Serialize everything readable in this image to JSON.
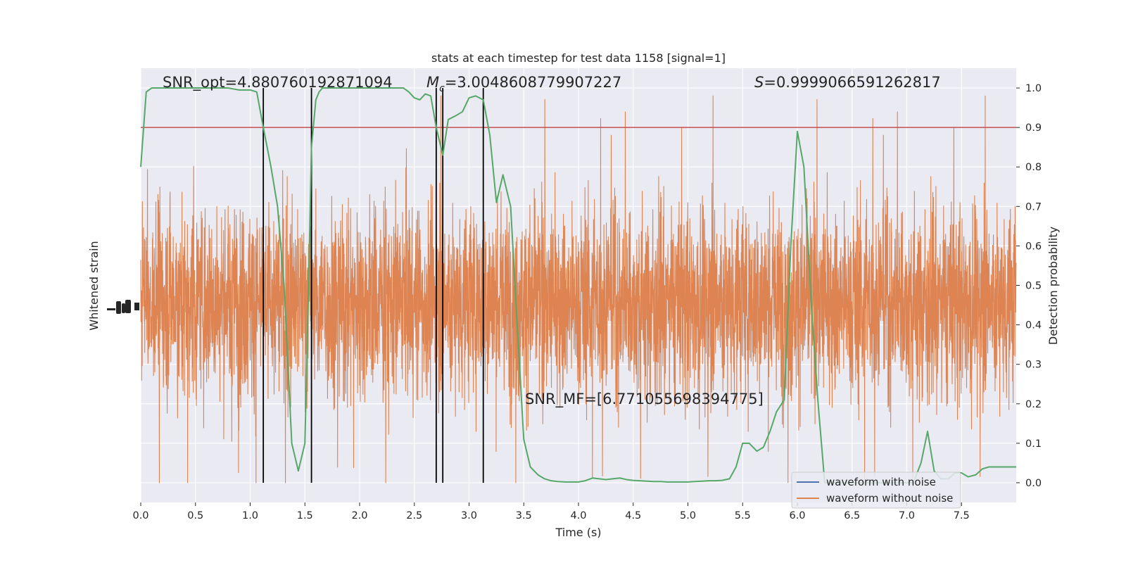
{
  "chart_data": {
    "type": "line",
    "title": "stats at each timestep for test data 1158 [signal=1]",
    "xlabel": "Time (s)",
    "ylabel_left": "Whitened strain",
    "ylabel_right": "Detection probability",
    "xlim": [
      0.0,
      8.0
    ],
    "ylim_right": [
      -0.05,
      1.05
    ],
    "x_ticks": [
      "0.0",
      "0.5",
      "1.0",
      "1.5",
      "2.0",
      "2.5",
      "3.0",
      "3.5",
      "4.0",
      "4.5",
      "5.0",
      "5.5",
      "6.0",
      "6.5",
      "7.0",
      "7.5"
    ],
    "y_ticks_right": [
      "0.0",
      "0.1",
      "0.2",
      "0.3",
      "0.4",
      "0.5",
      "0.6",
      "0.7",
      "0.8",
      "0.9",
      "1.0"
    ],
    "grid": true,
    "annotations": {
      "snr_opt": "SNR_opt=4.880760192871094",
      "mc_symbol": "M",
      "mc_subscript": "c",
      "mc_value": "=3.0048608779907227",
      "s_symbol": "S",
      "s_value": "=0.9999066591262817",
      "snr_mf": "SNR_MF=[6.771055698394775]"
    },
    "threshold": 0.9,
    "event_lines_x": [
      1.12,
      1.56,
      2.7,
      2.76,
      3.13
    ],
    "detection_probability": {
      "x": [
        0.0,
        0.05,
        0.1,
        0.2,
        0.3,
        0.4,
        0.5,
        0.6,
        0.7,
        0.8,
        0.9,
        1.0,
        1.06,
        1.12,
        1.19,
        1.25,
        1.31,
        1.38,
        1.44,
        1.5,
        1.53,
        1.56,
        1.6,
        1.63,
        1.66,
        1.7,
        1.75,
        1.81,
        1.88,
        1.94,
        2.0,
        2.1,
        2.2,
        2.3,
        2.4,
        2.45,
        2.5,
        2.55,
        2.6,
        2.65,
        2.7,
        2.76,
        2.81,
        2.88,
        2.94,
        3.0,
        3.06,
        3.13,
        3.19,
        3.25,
        3.31,
        3.38,
        3.44,
        3.5,
        3.56,
        3.63,
        3.69,
        3.75,
        3.81,
        3.88,
        3.94,
        4.0,
        4.06,
        4.13,
        4.19,
        4.25,
        4.31,
        4.38,
        4.44,
        4.5,
        4.56,
        4.63,
        4.69,
        4.75,
        4.81,
        4.88,
        4.94,
        5.0,
        5.06,
        5.13,
        5.19,
        5.25,
        5.31,
        5.38,
        5.44,
        5.5,
        5.56,
        5.63,
        5.69,
        5.75,
        5.81,
        5.88,
        5.94,
        6.0,
        6.06,
        6.13,
        6.19,
        6.25,
        6.31,
        6.38,
        6.44,
        6.5,
        6.56,
        6.63,
        6.69,
        6.75,
        6.81,
        6.88,
        6.94,
        7.0,
        7.06,
        7.13,
        7.19,
        7.25,
        7.31,
        7.38,
        7.44,
        7.5,
        7.56,
        7.63,
        7.69,
        7.75,
        7.81,
        7.88,
        7.94,
        8.0
      ],
      "y": [
        0.8,
        0.99,
        1.0,
        1.0,
        1.0,
        1.0,
        1.0,
        1.0,
        1.0,
        1.0,
        0.995,
        0.995,
        0.99,
        0.9,
        0.8,
        0.7,
        0.5,
        0.1,
        0.03,
        0.1,
        0.45,
        0.85,
        0.97,
        0.99,
        1.0,
        1.0,
        1.0,
        1.0,
        1.0,
        1.0,
        1.0,
        1.0,
        1.0,
        1.0,
        1.0,
        0.99,
        0.975,
        0.97,
        0.985,
        0.98,
        0.9,
        0.83,
        0.92,
        0.93,
        0.94,
        0.975,
        0.98,
        0.97,
        0.88,
        0.71,
        0.78,
        0.7,
        0.4,
        0.11,
        0.04,
        0.02,
        0.01,
        0.005,
        0.003,
        0.002,
        0.002,
        0.002,
        0.005,
        0.012,
        0.01,
        0.008,
        0.01,
        0.012,
        0.008,
        0.006,
        0.005,
        0.004,
        0.003,
        0.003,
        0.002,
        0.002,
        0.002,
        0.002,
        0.003,
        0.004,
        0.005,
        0.005,
        0.006,
        0.01,
        0.04,
        0.1,
        0.1,
        0.08,
        0.09,
        0.13,
        0.18,
        0.21,
        0.6,
        0.89,
        0.8,
        0.44,
        0.2,
        0.0,
        0.0,
        0.0,
        0.0,
        0.0,
        0.0,
        0.0,
        0.0,
        0.0,
        0.0,
        0.0,
        0.0,
        0.0,
        0.0,
        0.05,
        0.13,
        0.03,
        0.01,
        0.01,
        0.025,
        0.025,
        0.015,
        0.02,
        0.035,
        0.04,
        0.04,
        0.04,
        0.04,
        0.04
      ],
      "color": "#55a868"
    },
    "strain_samples": 4800,
    "strain_center": 0.46,
    "series": [
      {
        "name": "waveform with noise",
        "color": "#4c72b0"
      },
      {
        "name": "waveform without noise",
        "color": "#dd8452"
      }
    ],
    "colors": {
      "plot_bg": "#eaeaf2",
      "threshold": "#c44e52",
      "event_line": "#000000",
      "grid": "#ffffff"
    }
  }
}
